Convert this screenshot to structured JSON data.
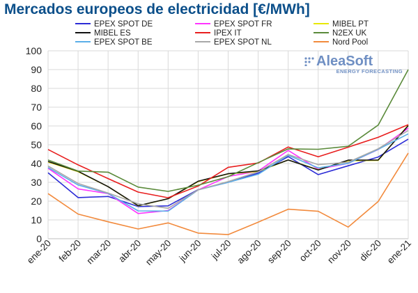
{
  "chart_data": {
    "type": "line",
    "title": "Mercados europeos de electricidad [€/MWh]",
    "xlabel": "",
    "ylabel": "",
    "ylim": [
      0,
      100
    ],
    "yticks": [
      0,
      10,
      20,
      30,
      40,
      50,
      60,
      70,
      80,
      90,
      100
    ],
    "grid": true,
    "legend_position": "top",
    "categories": [
      "ene-20",
      "feb-20",
      "mar-20",
      "abr-20",
      "may-20",
      "jun-20",
      "jul-20",
      "ago-20",
      "sep-20",
      "oct-20",
      "nov-20",
      "dic-20",
      "ene-21"
    ],
    "series": [
      {
        "name": "EPEX SPOT DE",
        "color": "#2b2bd6",
        "values": [
          35.1,
          21.9,
          22.5,
          17.1,
          17.5,
          26.1,
          30.0,
          34.9,
          43.7,
          34.1,
          38.8,
          43.5,
          53.0
        ]
      },
      {
        "name": "EPEX SPOT FR",
        "color": "#ff33ff",
        "values": [
          37.5,
          26.5,
          24.0,
          13.4,
          15.0,
          26.0,
          33.1,
          36.0,
          47.0,
          37.0,
          40.1,
          47.5,
          58.8
        ]
      },
      {
        "name": "MIBEL PT",
        "color": "#e8e800",
        "values": [
          40.8,
          35.7,
          27.7,
          17.5,
          21.3,
          30.4,
          34.5,
          35.8,
          41.9,
          36.7,
          41.5,
          41.7,
          60.4
        ]
      },
      {
        "name": "MIBEL ES",
        "color": "#111111",
        "values": [
          41.1,
          35.9,
          27.7,
          17.6,
          21.3,
          30.6,
          34.6,
          36.1,
          41.9,
          36.6,
          41.8,
          41.9,
          60.2
        ]
      },
      {
        "name": "IPEX IT",
        "color": "#e81e1e",
        "values": [
          47.5,
          39.3,
          32.0,
          24.8,
          21.8,
          28.0,
          38.0,
          40.3,
          48.8,
          43.6,
          48.7,
          54.0,
          60.7
        ]
      },
      {
        "name": "N2EX UK",
        "color": "#5a8a3a",
        "values": [
          41.9,
          36.0,
          35.4,
          27.5,
          25.2,
          28.5,
          33.0,
          40.5,
          47.8,
          47.6,
          49.2,
          60.5,
          90.0
        ]
      },
      {
        "name": "EPEX SPOT BE",
        "color": "#5aaee8",
        "values": [
          37.9,
          28.6,
          24.1,
          14.8,
          14.7,
          26.0,
          30.0,
          34.3,
          44.4,
          37.7,
          40.1,
          47.6,
          55.8
        ]
      },
      {
        "name": "EPEX SPOT NL",
        "color": "#a8a8a8",
        "values": [
          38.7,
          29.4,
          24.3,
          18.6,
          16.2,
          26.0,
          30.4,
          35.6,
          44.8,
          39.4,
          40.7,
          47.9,
          57.6
        ]
      },
      {
        "name": "Nord Pool",
        "color": "#f28a3c",
        "values": [
          24.0,
          13.1,
          9.0,
          5.2,
          8.4,
          3.0,
          2.2,
          8.8,
          15.7,
          14.6,
          6.2,
          19.8,
          45.6
        ]
      }
    ]
  },
  "logo": {
    "name": "AleaSoft",
    "tagline": "ENERGY FORECASTING"
  }
}
